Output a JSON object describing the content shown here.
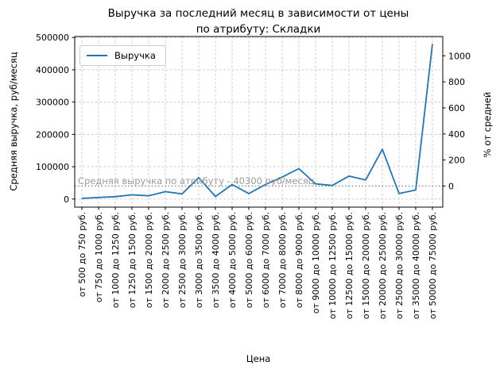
{
  "title": {
    "line1": "Выручка за последний месяц в зависимости от цены",
    "line2": "по атрибуту: Складки"
  },
  "legend": {
    "label": "Выручка"
  },
  "annotation": {
    "text": "Средняя выручка по атрибуту - 40300 руб/месяц"
  },
  "axes": {
    "x_label": "Цена",
    "y_left_label": "Средняя выручка, руб/месяц",
    "y_right_label": "% от средней"
  },
  "colors": {
    "line": "#1f77b4",
    "grid": "#c9c9c9",
    "average_line": "#8a8a8a",
    "annotation_text": "#9a9a9a",
    "axis": "#000000"
  },
  "chart_data": {
    "type": "line",
    "title": "Выручка за последний месяц в зависимости от цены по атрибуту: Складки",
    "xlabel": "Цена",
    "ylabel": "Средняя выручка, руб/месяц",
    "ylabel_right": "% от средней",
    "legend_entries": [
      "Выручка"
    ],
    "legend_position": "upper left",
    "grid": true,
    "categories": [
      "от 500 до 750 руб.",
      "от 750 до 1000 руб.",
      "от 1000 до 1250 руб.",
      "от 1250 до 1500 руб.",
      "от 1500 до 2000 руб.",
      "от 2000 до 2500 руб.",
      "от 2500 до 3000 руб.",
      "от 3000 до 3500 руб.",
      "от 3500 до 4000 руб.",
      "от 4000 до 5000 руб.",
      "от 5000 до 6000 руб.",
      "от 6000 до 7000 руб.",
      "от 7000 до 8000 руб.",
      "от 8000 до 9000 руб.",
      "от 9000 до 10000 руб.",
      "от 10000 до 12500 руб.",
      "от 12500 до 15000 руб.",
      "от 15000 до 20000 руб.",
      "от 20000 до 25000 руб.",
      "от 25000 до 30000 руб.",
      "от 35000 до 40000 руб.",
      "от 50000 до 75000 руб."
    ],
    "series": [
      {
        "name": "Выручка",
        "values": [
          2000,
          5000,
          7500,
          13000,
          10000,
          23000,
          16000,
          66000,
          8000,
          45000,
          17000,
          45000,
          68000,
          94000,
          47000,
          42000,
          71000,
          59000,
          154000,
          17000,
          28000,
          480000
        ]
      }
    ],
    "average_line": {
      "value": 40300,
      "label": "Средняя выручка по атрибуту - 40300 руб/месяц"
    },
    "y_left_ticks": [
      0,
      100000,
      200000,
      300000,
      400000,
      500000
    ],
    "y_right_ticks": [
      0,
      200,
      400,
      600,
      800,
      1000
    ],
    "ylim_left": [
      -25000,
      503000
    ],
    "right_axis_mapping": "percent_of_average: value = 40300 + pct * 403"
  }
}
